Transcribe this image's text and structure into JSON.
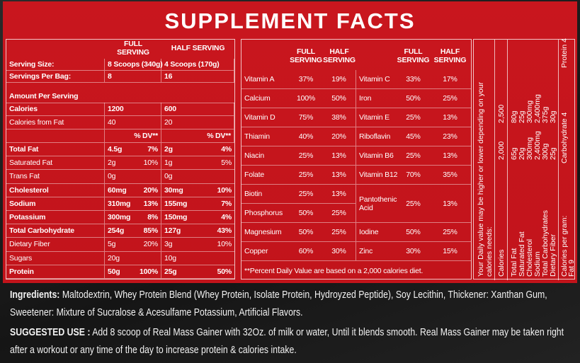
{
  "title": "SUPPLEMENT FACTS",
  "serving_table": {
    "header": [
      "FULL SERVING",
      "HALF SERVING"
    ],
    "rows": [
      [
        "Serving Size:",
        "8 Scoops (340g)",
        "4 Scoops (170g)"
      ],
      [
        "Servings Per Bag:",
        "8",
        "16"
      ],
      [
        "Amount Per Serving"
      ],
      [
        "Calories",
        "1200",
        "600"
      ],
      [
        "Calories from Fat",
        "40",
        "20"
      ],
      [
        null,
        "% DV**",
        "% DV**"
      ],
      [
        "Total Fat",
        "4.5g",
        "7%",
        "2g",
        "4%"
      ],
      [
        "Saturated Fat",
        "2g",
        "10%",
        "1g",
        "5%"
      ],
      [
        "Trans Fat",
        "0g",
        null,
        "0g",
        null
      ],
      [
        "Cholesterol",
        "60mg",
        "20%",
        "30mg",
        "10%"
      ],
      [
        "Sodium",
        "310mg",
        "13%",
        "155mg",
        "7%"
      ],
      [
        "Potassium",
        "300mg",
        "8%",
        "150mg",
        "4%"
      ],
      [
        "Total Carbohydrate",
        "254g",
        "85%",
        "127g",
        "43%"
      ],
      [
        "Dietary Fiber",
        "5g",
        "20%",
        "3g",
        "10%"
      ],
      [
        "Sugars",
        "20g",
        null,
        "10g",
        null
      ],
      [
        "Protein",
        "50g",
        "100%",
        "25g",
        "50%"
      ]
    ]
  },
  "vitamin_table": {
    "header": [
      "FULL SERVING",
      "HALF SERVING",
      "FULL SERVING",
      "HALF SERVING"
    ],
    "rows": [
      [
        "Vitamin A",
        "37%",
        "19%",
        "Vitamin C",
        "33%",
        "17%"
      ],
      [
        "Calcium",
        "100%",
        "50%",
        "Iron",
        "50%",
        "25%"
      ],
      [
        "Vitamin D",
        "75%",
        "38%",
        "Vitamin E",
        "25%",
        "13%"
      ],
      [
        "Thiamin",
        "40%",
        "20%",
        "Riboflavin",
        "45%",
        "23%"
      ],
      [
        "Niacin",
        "25%",
        "13%",
        "Vitamin B6",
        "25%",
        "13%"
      ],
      [
        "Folate",
        "25%",
        "13%",
        "Vitamin B12",
        "70%",
        "35%"
      ],
      [
        "Biotin",
        "25%",
        "13%",
        "Pantothenic Acid",
        "25%",
        "13%"
      ],
      [
        "Phosphorus",
        "50%",
        "25%"
      ],
      [
        "Magnesium",
        "50%",
        "25%",
        "Iodine",
        "50%",
        "25%"
      ],
      [
        "Copper",
        "60%",
        "30%",
        "Zinc",
        "30%",
        "15%"
      ]
    ],
    "footnote": "**Percent Daily Value are based on a 2,000 calories diet."
  },
  "daily_values": {
    "note": "Your Daily value may be higher or lower depending on your calories needs:",
    "header": [
      "Calories",
      "2,000",
      "2,500"
    ],
    "rows": [
      [
        "Total Fat",
        "65g",
        "80g"
      ],
      [
        "Saturated Fat",
        "20g",
        "25g"
      ],
      [
        "Cholesterol",
        "300mg",
        "300mg"
      ],
      [
        "Sodium",
        "2,400mg",
        "2,400mg"
      ],
      [
        "Total Carbohydrates",
        "300g",
        "375g"
      ],
      [
        "Dietary Fiber",
        "25g",
        "30g"
      ]
    ],
    "per_gram_label": "Calories per gram:",
    "per_gram": [
      "Fat 9",
      "Carbohydrate 4",
      "Protein 4"
    ]
  },
  "ingredients": {
    "label": "Ingredients:",
    "text": "Maltodextrin, Whey Protein Blend (Whey Protein, Isolate Protein, Hydroyzed Peptide), Soy Lecithin, Thickener: Xanthan Gum, Sweetener: Mixture of Sucralose & Acesulfame Potassium, Artificial Flavors."
  },
  "suggested_use": {
    "label": "SUGGESTED USE :",
    "text": "Add 8 scoop of Real Mass Gainer with 32Oz. of milk or water, Until it blends smooth. Real Mass Gainer may be taken right after a workout or any time of the day to increase protein & calories intake."
  }
}
